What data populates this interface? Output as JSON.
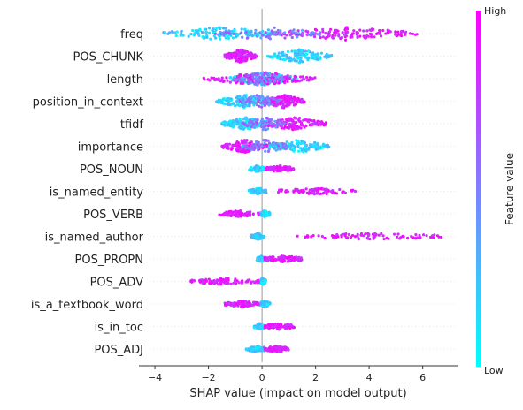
{
  "chart_data": {
    "type": "scatter",
    "subtype": "shap-beeswarm",
    "title": "",
    "xlabel": "SHAP value (impact on model output)",
    "ylabel": "",
    "xlim": [
      -4.2,
      7.3
    ],
    "xticks": [
      -4,
      -2,
      0,
      2,
      4,
      6
    ],
    "grid": false,
    "colorbar": {
      "label": "Feature value",
      "high_label": "High",
      "low_label": "Low",
      "low_color": "#00ffff",
      "high_color": "#ff00ff"
    },
    "features": [
      {
        "name": "freq",
        "low_range": [
          -3.7,
          0.6
        ],
        "high_range": [
          0.5,
          5.8
        ],
        "density": "wide-low"
      },
      {
        "name": "POS_CHUNK",
        "low_range": [
          0.2,
          2.6
        ],
        "high_range": [
          -1.4,
          -0.2
        ],
        "density": "low-right"
      },
      {
        "name": "length",
        "low_range": [
          -1.2,
          1.3
        ],
        "high_range": [
          -2.2,
          2.0
        ],
        "density": "mixed"
      },
      {
        "name": "position_in_context",
        "low_range": [
          -1.7,
          0.3
        ],
        "high_range": [
          0.0,
          1.6
        ],
        "density": "mixed"
      },
      {
        "name": "tfidf",
        "low_range": [
          -1.5,
          0.3
        ],
        "high_range": [
          0.0,
          2.4
        ],
        "density": "mixed"
      },
      {
        "name": "importance",
        "low_range": [
          0.2,
          2.5
        ],
        "high_range": [
          -1.5,
          0.2
        ],
        "density": "mixed"
      },
      {
        "name": "POS_NOUN",
        "low_range": [
          -0.5,
          0.1
        ],
        "high_range": [
          0.1,
          1.2
        ],
        "density": "binary"
      },
      {
        "name": "is_named_entity",
        "low_range": [
          -0.5,
          0.2
        ],
        "high_range": [
          0.6,
          3.5
        ],
        "density": "binary"
      },
      {
        "name": "POS_VERB",
        "low_range": [
          -0.1,
          0.3
        ],
        "high_range": [
          -1.6,
          -0.1
        ],
        "density": "binary"
      },
      {
        "name": "is_named_author",
        "low_range": [
          -0.4,
          0.1
        ],
        "high_range": [
          1.3,
          6.7
        ],
        "density": "binary"
      },
      {
        "name": "POS_PROPN",
        "low_range": [
          -0.2,
          0.1
        ],
        "high_range": [
          0.1,
          1.5
        ],
        "density": "binary"
      },
      {
        "name": "POS_ADV",
        "low_range": [
          -0.1,
          0.15
        ],
        "high_range": [
          -2.7,
          -0.1
        ],
        "density": "binary"
      },
      {
        "name": "is_a_textbook_word",
        "low_range": [
          -0.1,
          0.3
        ],
        "high_range": [
          -1.4,
          -0.1
        ],
        "density": "binary"
      },
      {
        "name": "is_in_toc",
        "low_range": [
          -0.3,
          0.1
        ],
        "high_range": [
          0.1,
          1.2
        ],
        "density": "binary"
      },
      {
        "name": "POS_ADJ",
        "low_range": [
          -0.6,
          0.3
        ],
        "high_range": [
          0.1,
          1.0
        ],
        "density": "binary"
      }
    ]
  }
}
